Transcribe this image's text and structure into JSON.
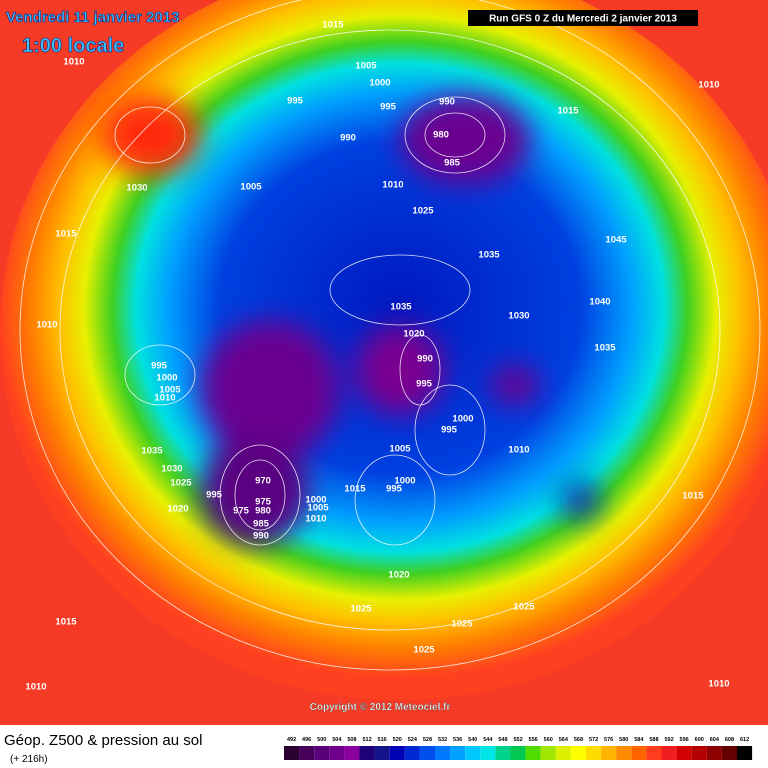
{
  "header": {
    "date": "Vendredi 11 janvier 2013",
    "time": "1:00 locale",
    "run": "Run GFS 0 Z du Mercredi 2 janvier 2013"
  },
  "copyright": "Copyright © 2012 Meteociel.fr",
  "footer": {
    "title": "Géop. Z500 & pression au sol",
    "lead": "(+ 216h)"
  },
  "isobar_labels": [
    "1015",
    "1010",
    "1005",
    "1000",
    "995",
    "995",
    "990",
    "1015",
    "1010",
    "990",
    "980",
    "985",
    "1030",
    "1005",
    "1010",
    "1025",
    "1015",
    "1045",
    "1035",
    "1040",
    "1035",
    "1030",
    "1010",
    "1020",
    "990",
    "1035",
    "995",
    "1000",
    "1005",
    "1010",
    "995",
    "1000",
    "995",
    "1005",
    "1010",
    "1035",
    "1030",
    "1025",
    "970",
    "1000",
    "995",
    "1015",
    "995",
    "975",
    "1000",
    "980",
    "1005",
    "975",
    "1020",
    "1010",
    "985",
    "990",
    "1015",
    "1020",
    "1025",
    "1025",
    "1025",
    "1015",
    "1025",
    "1010",
    "1010"
  ],
  "legend": {
    "values": [
      492,
      496,
      500,
      504,
      508,
      512,
      516,
      520,
      524,
      528,
      532,
      536,
      540,
      544,
      548,
      552,
      556,
      560,
      564,
      568,
      572,
      576,
      580,
      584,
      588,
      592,
      596,
      600,
      604,
      608,
      612
    ],
    "colors": [
      "#2a0030",
      "#46005a",
      "#5a0078",
      "#6e008c",
      "#8c00a0",
      "#1e0078",
      "#14148c",
      "#0000b4",
      "#0028d2",
      "#0050f0",
      "#0078ff",
      "#00a0ff",
      "#00c8ff",
      "#00e6e6",
      "#00d28c",
      "#00c850",
      "#50dc00",
      "#a0e600",
      "#dcf000",
      "#ffff00",
      "#ffdc00",
      "#ffb400",
      "#ff8c00",
      "#ff6400",
      "#ff3c1e",
      "#f01e1e",
      "#d20000",
      "#b40000",
      "#8c0000",
      "#640000",
      "#000000"
    ]
  }
}
